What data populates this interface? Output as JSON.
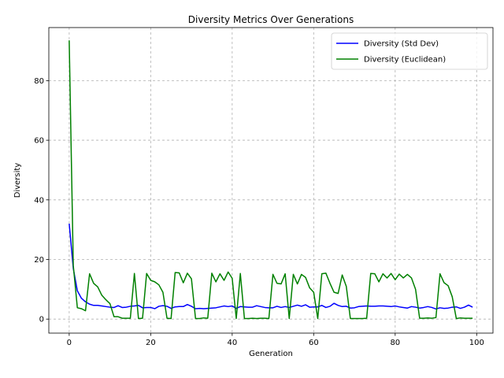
{
  "chart_data": {
    "type": "line",
    "title": "Diversity Metrics Over Generations",
    "xlabel": "Generation",
    "ylabel": "Diversity",
    "xlim": [
      -5,
      104
    ],
    "ylim": [
      -4.7,
      97.8
    ],
    "xticks": [
      0,
      20,
      40,
      60,
      80,
      100
    ],
    "yticks": [
      0,
      20,
      40,
      60,
      80
    ],
    "grid": true,
    "legend_position": "top-right",
    "series": [
      {
        "name": "Diversity (Std Dev)",
        "color": "#0000ff",
        "values": [
          32.0,
          17.0,
          9.5,
          7.0,
          5.8,
          5.0,
          4.6,
          4.6,
          4.4,
          4.2,
          4.0,
          3.9,
          4.5,
          3.9,
          4.0,
          4.3,
          4.4,
          4.6,
          3.8,
          3.9,
          3.9,
          3.5,
          4.3,
          4.5,
          4.3,
          3.6,
          4.1,
          4.2,
          4.2,
          4.9,
          4.3,
          3.5,
          3.6,
          3.5,
          3.6,
          3.7,
          3.8,
          4.1,
          4.4,
          4.2,
          4.4,
          3.6,
          4.2,
          4.1,
          4.0,
          4.0,
          4.5,
          4.2,
          3.9,
          3.8,
          3.8,
          4.3,
          3.9,
          4.2,
          3.9,
          4.3,
          4.7,
          4.3,
          4.8,
          4.0,
          4.1,
          4.1,
          4.6,
          3.9,
          4.3,
          5.3,
          4.6,
          4.2,
          4.3,
          3.7,
          3.8,
          4.2,
          4.3,
          4.4,
          4.3,
          4.3,
          4.4,
          4.4,
          4.3,
          4.2,
          4.4,
          4.1,
          3.9,
          3.7,
          4.2,
          4.0,
          3.7,
          3.9,
          4.2,
          3.9,
          3.4,
          3.8,
          3.6,
          3.7,
          4.0,
          4.1,
          3.6,
          4.0,
          4.7,
          4.0
        ]
      },
      {
        "name": "Diversity (Euclidean)",
        "color": "#008000",
        "values": [
          93.5,
          18.0,
          3.8,
          3.5,
          2.8,
          15.2,
          12.0,
          10.8,
          8.0,
          6.5,
          5.2,
          0.8,
          0.8,
          0.3,
          0.3,
          0.3,
          15.3,
          0.2,
          0.3,
          15.3,
          13.0,
          12.5,
          11.5,
          9.0,
          0.3,
          0.2,
          15.6,
          15.5,
          12.2,
          15.4,
          13.5,
          0.2,
          0.2,
          0.4,
          0.3,
          15.4,
          12.5,
          15.2,
          13.0,
          15.8,
          13.7,
          0.2,
          15.3,
          0.2,
          0.2,
          0.3,
          0.2,
          0.3,
          0.3,
          0.2,
          15.0,
          12.0,
          11.8,
          15.2,
          0.2,
          15.0,
          11.8,
          15.0,
          14.0,
          10.5,
          9.0,
          0.2,
          15.2,
          15.4,
          12.0,
          9.0,
          8.6,
          14.8,
          11.0,
          0.2,
          0.2,
          0.2,
          0.2,
          0.3,
          15.3,
          15.2,
          12.5,
          15.2,
          13.8,
          15.3,
          13.2,
          15.1,
          13.8,
          15.0,
          13.8,
          10.0,
          0.3,
          0.3,
          0.4,
          0.3,
          0.5,
          15.2,
          12.2,
          11.2,
          7.5,
          0.2,
          0.4,
          0.3,
          0.3,
          0.3
        ]
      }
    ]
  }
}
